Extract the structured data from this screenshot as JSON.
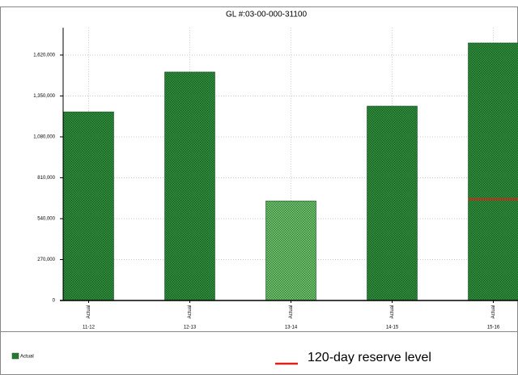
{
  "chart_data": {
    "type": "bar",
    "title": "GL #:03-00-000-31100",
    "categories": [
      "11-12",
      "12-13",
      "13-14",
      "14-15",
      "15-16"
    ],
    "series": [
      {
        "name": "Actual",
        "color": "#2d8a3b",
        "colors": [
          "#2d8a3b",
          "#2d8a3b",
          "#6cc26a",
          "#2d8a3b",
          "#2d8a3b"
        ],
        "values": [
          1245000,
          1508000,
          657000,
          1283000,
          1700000
        ]
      },
      {
        "name": "120-day reserve level",
        "type": "line",
        "color": "#e0201b",
        "values": [
          null,
          null,
          null,
          null,
          668000
        ]
      }
    ],
    "ylim": [
      0,
      1800000
    ],
    "yticks": [
      0,
      {
        "value": 270000,
        "label": "270,000"
      },
      {
        "value": 540000,
        "label": "540,000"
      },
      {
        "value": 810000,
        "label": "810,000"
      },
      {
        "value": 1080000,
        "label": "1,080,000"
      },
      {
        "value": 1350000,
        "label": "1,350,000"
      },
      {
        "value": 1620000,
        "label": "1,620,000"
      }
    ],
    "grid": true,
    "legend": "bottom"
  }
}
